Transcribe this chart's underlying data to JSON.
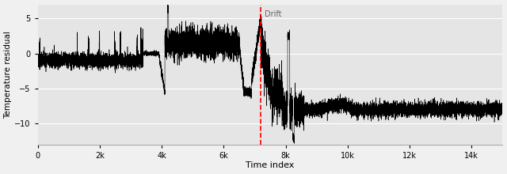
{
  "title": "",
  "xlabel": "Time index",
  "ylabel": "Temperature residual",
  "drift_x": 7200,
  "drift_label": "Drift",
  "xlim": [
    0,
    15000
  ],
  "ylim": [
    -13,
    7
  ],
  "yticks": [
    5,
    0,
    -5,
    -10
  ],
  "xtick_labels": [
    "0",
    "2k",
    "4k",
    "6k",
    "8k",
    "10k",
    "12k",
    "14k"
  ],
  "xtick_locs": [
    0,
    2000,
    4000,
    6000,
    8000,
    10000,
    12000,
    14000
  ],
  "line_color": "#000000",
  "drift_line_color": "#ff0000",
  "background_color": "#e5e5e5",
  "seed": 42,
  "n_points": 15000
}
